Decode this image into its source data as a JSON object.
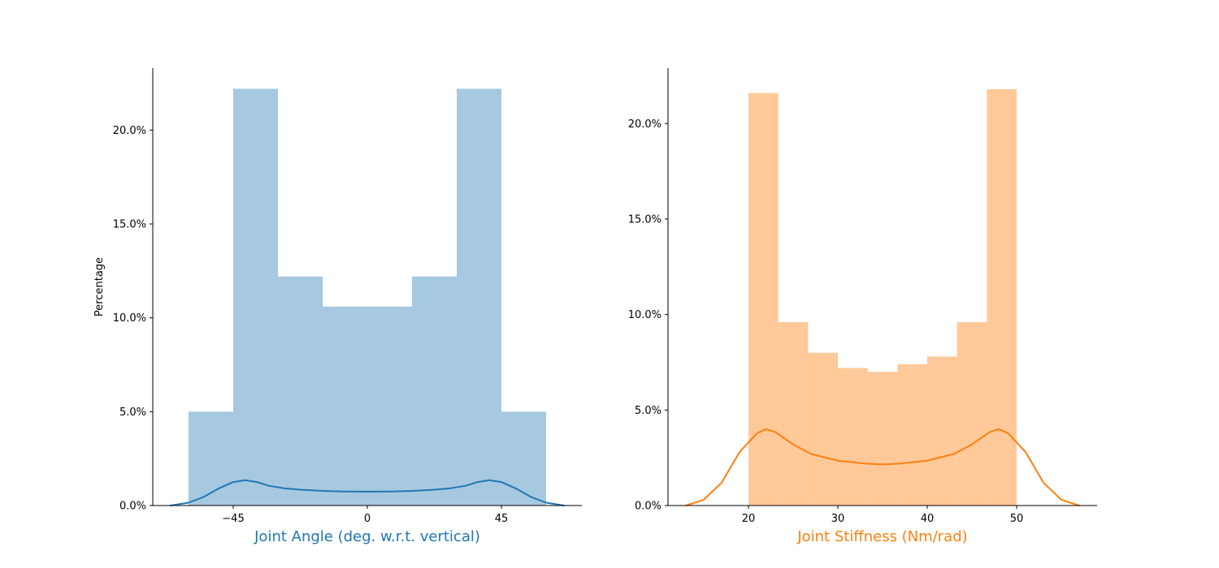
{
  "chart_data": [
    {
      "type": "bar",
      "subtype": "histogram-with-kde",
      "xlabel": "Joint Angle (deg. w.r.t. vertical)",
      "ylabel": "Percentage",
      "xlim": [
        -72,
        72
      ],
      "ylim": [
        0,
        23.3
      ],
      "xticks": [
        {
          "value": -45,
          "label": "−45"
        },
        {
          "value": 0,
          "label": "0"
        },
        {
          "value": 45,
          "label": "45"
        }
      ],
      "yticks": [
        {
          "value": 0,
          "label": "0.0%"
        },
        {
          "value": 5,
          "label": "5.0%"
        },
        {
          "value": 10,
          "label": "10.0%"
        },
        {
          "value": 15,
          "label": "15.0%"
        },
        {
          "value": 20,
          "label": "20.0%"
        }
      ],
      "bar_color": "#a6c8e0",
      "line_color": "#1f77b4",
      "label_color": "#1f77b4",
      "bins": [
        {
          "x0": -60,
          "x1": -45,
          "value": 5.0
        },
        {
          "x0": -45,
          "x1": -30,
          "value": 22.2
        },
        {
          "x0": -30,
          "x1": -15,
          "value": 12.2
        },
        {
          "x0": -15,
          "x1": 0,
          "value": 10.6
        },
        {
          "x0": 0,
          "x1": 15,
          "value": 10.6
        },
        {
          "x0": 15,
          "x1": 30,
          "value": 12.2
        },
        {
          "x0": 30,
          "x1": 45,
          "value": 22.2
        },
        {
          "x0": 45,
          "x1": 60,
          "value": 5.0
        }
      ],
      "kde": {
        "x": [
          -66,
          -60,
          -55,
          -50,
          -45,
          -41,
          -37,
          -33,
          -28,
          -22,
          -15,
          -8,
          0,
          8,
          15,
          22,
          28,
          33,
          37,
          41,
          45,
          50,
          55,
          60,
          66
        ],
        "y": [
          0.0,
          0.15,
          0.45,
          0.9,
          1.25,
          1.35,
          1.25,
          1.05,
          0.92,
          0.84,
          0.78,
          0.75,
          0.74,
          0.75,
          0.78,
          0.84,
          0.92,
          1.05,
          1.25,
          1.35,
          1.25,
          0.9,
          0.45,
          0.15,
          0.0
        ]
      }
    },
    {
      "type": "bar",
      "subtype": "histogram-with-kde",
      "xlabel": "Joint Stiffness (Nm/rad)",
      "ylabel": "",
      "xlim": [
        11.0,
        59.0
      ],
      "ylim": [
        0,
        22.9
      ],
      "xticks": [
        {
          "value": 20,
          "label": "20"
        },
        {
          "value": 30,
          "label": "30"
        },
        {
          "value": 40,
          "label": "40"
        },
        {
          "value": 50,
          "label": "50"
        }
      ],
      "yticks": [
        {
          "value": 0,
          "label": "0.0%"
        },
        {
          "value": 5,
          "label": "5.0%"
        },
        {
          "value": 10,
          "label": "10.0%"
        },
        {
          "value": 15,
          "label": "15.0%"
        },
        {
          "value": 20,
          "label": "20.0%"
        }
      ],
      "bar_color": "#ffc999",
      "line_color": "#ff7f0e",
      "label_color": "#ff7f0e",
      "bins": [
        {
          "x0": 20.0,
          "x1": 23.33,
          "value": 21.6
        },
        {
          "x0": 23.33,
          "x1": 26.67,
          "value": 9.6
        },
        {
          "x0": 26.67,
          "x1": 30.0,
          "value": 8.0
        },
        {
          "x0": 30.0,
          "x1": 33.33,
          "value": 7.2
        },
        {
          "x0": 33.33,
          "x1": 36.67,
          "value": 7.0
        },
        {
          "x0": 36.67,
          "x1": 40.0,
          "value": 7.4
        },
        {
          "x0": 40.0,
          "x1": 43.33,
          "value": 7.8
        },
        {
          "x0": 43.33,
          "x1": 46.67,
          "value": 9.6
        },
        {
          "x0": 46.67,
          "x1": 50.0,
          "value": 21.8
        }
      ],
      "kde": {
        "x": [
          13,
          15,
          17,
          19,
          21,
          22,
          23,
          25,
          27,
          30,
          33,
          35,
          37,
          40,
          43,
          45,
          47,
          48,
          49,
          51,
          53,
          55,
          57
        ],
        "y": [
          0.0,
          0.3,
          1.2,
          2.8,
          3.8,
          4.0,
          3.85,
          3.2,
          2.7,
          2.35,
          2.2,
          2.15,
          2.2,
          2.35,
          2.7,
          3.2,
          3.85,
          4.0,
          3.8,
          2.8,
          1.2,
          0.3,
          0.0
        ]
      }
    }
  ]
}
